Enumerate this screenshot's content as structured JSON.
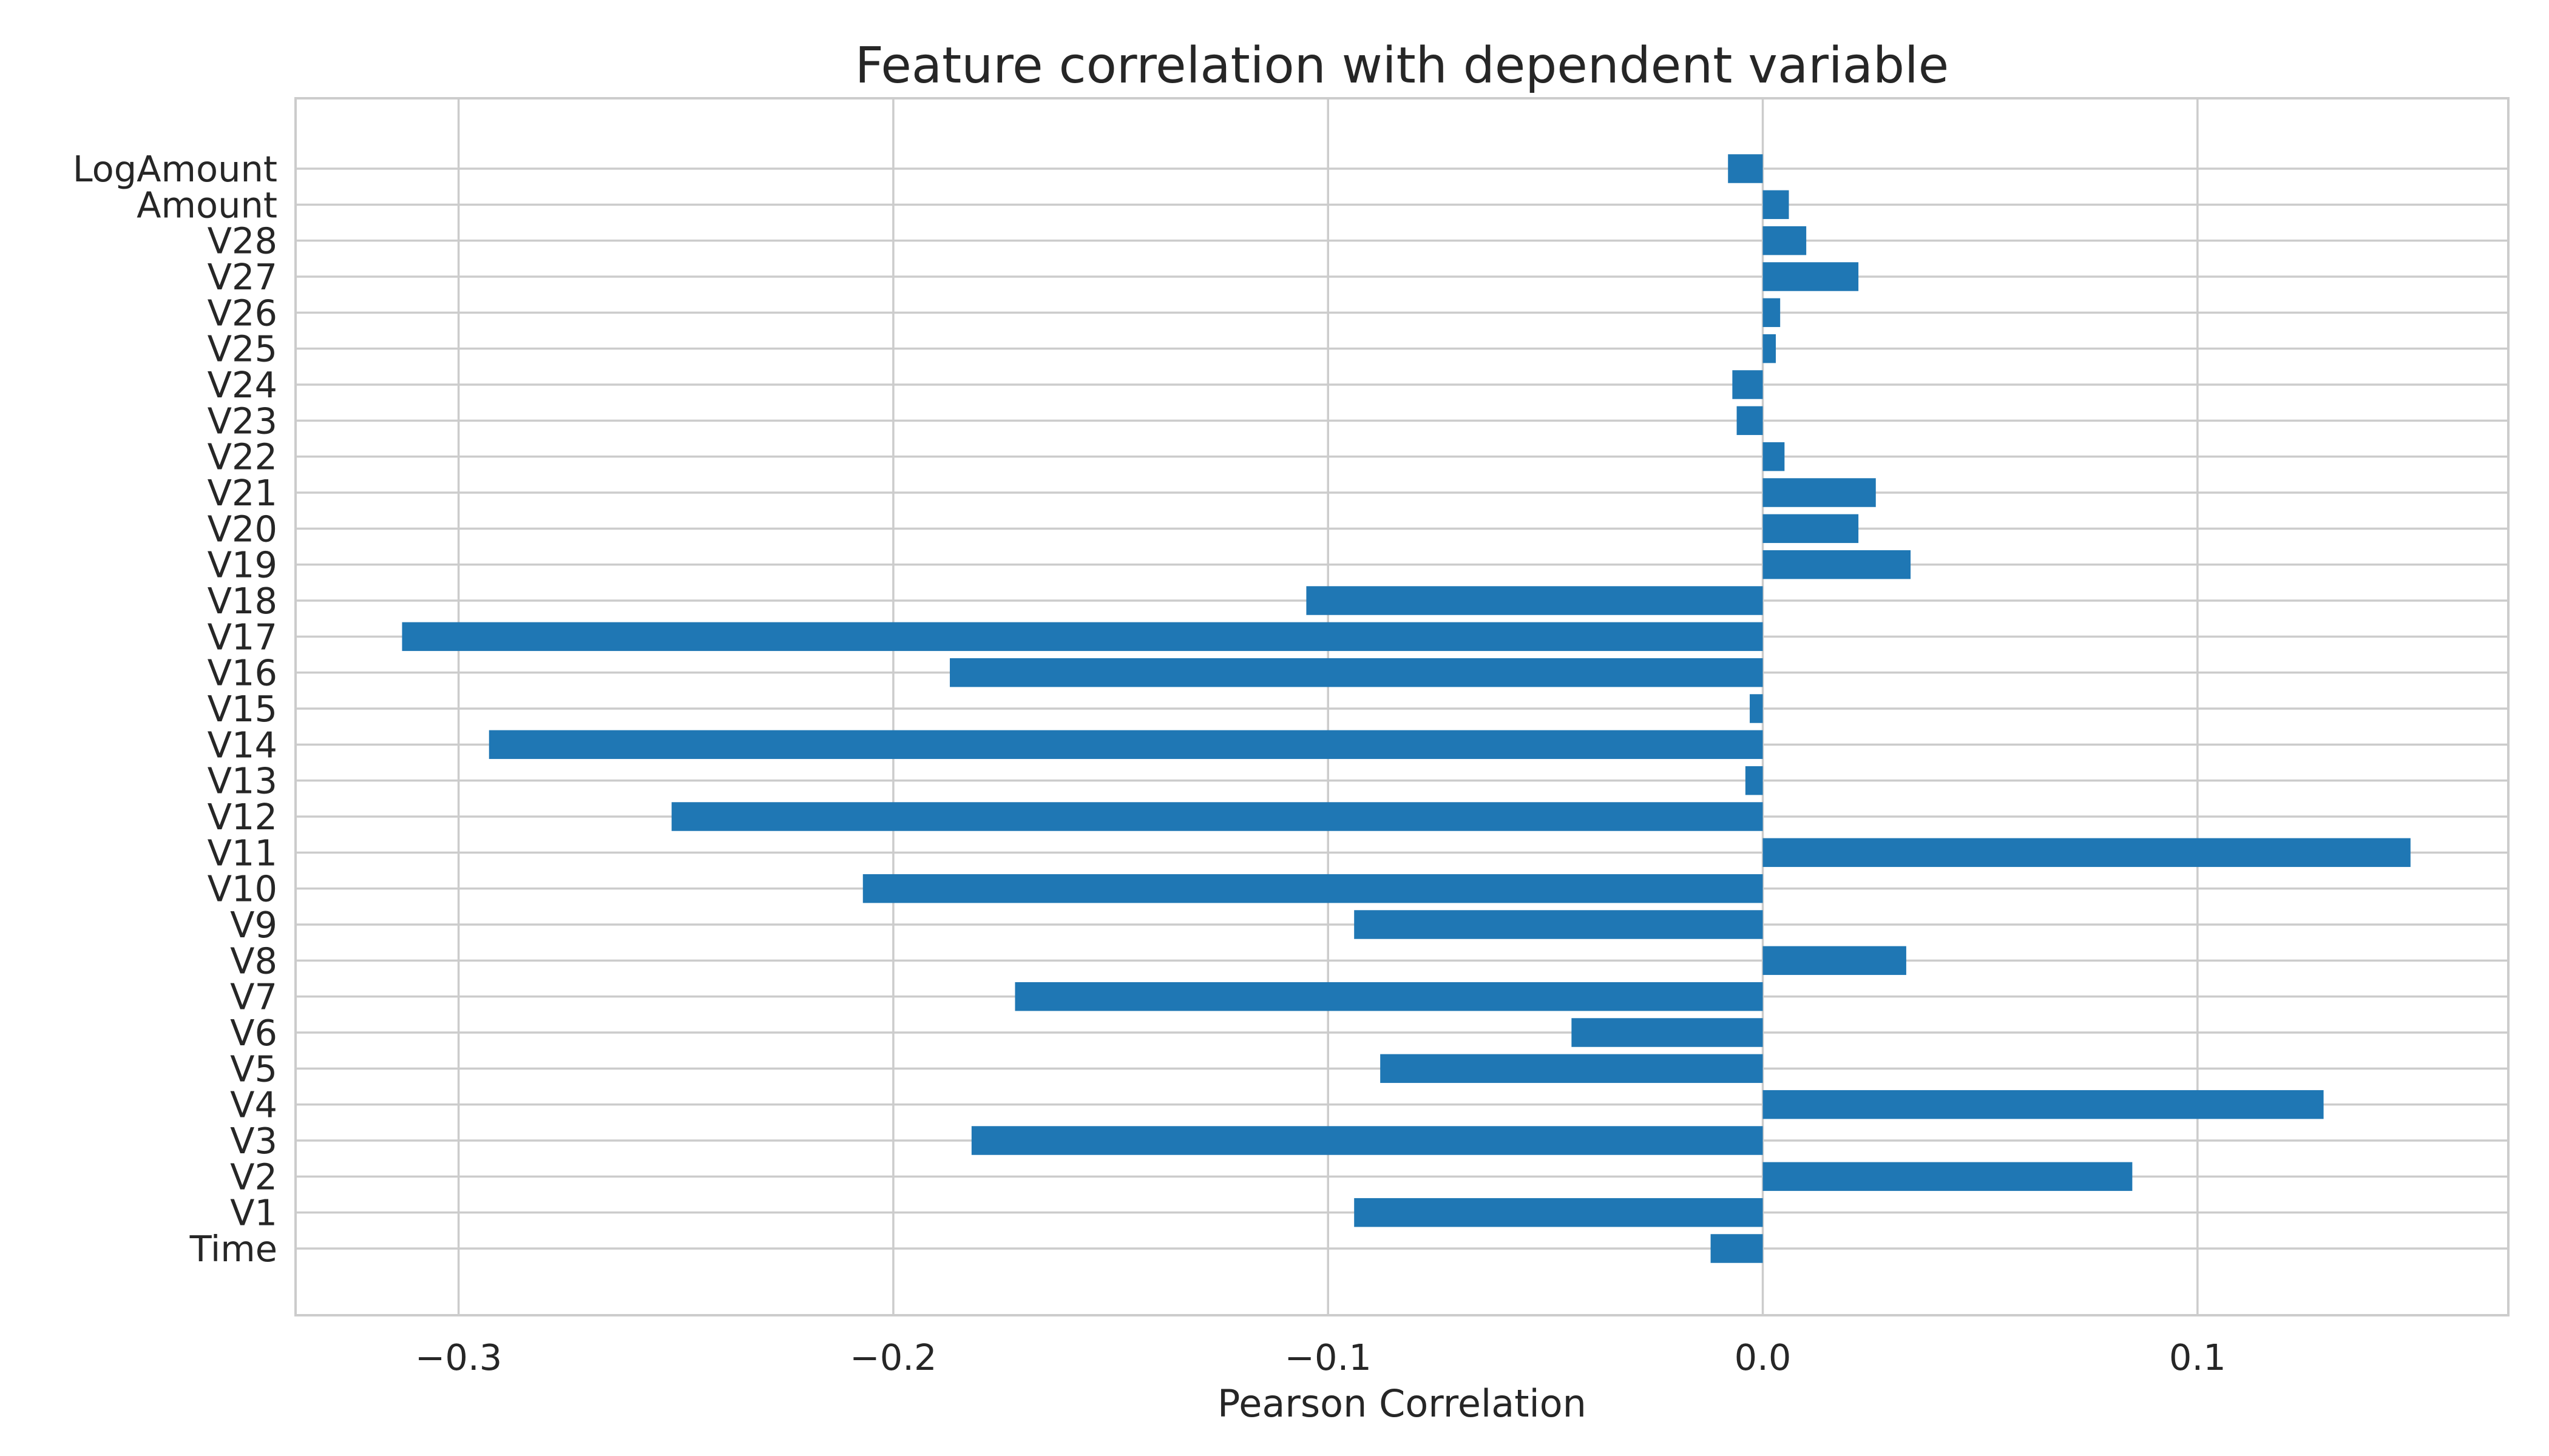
{
  "chart_data": {
    "type": "bar",
    "orientation": "horizontal",
    "title": "Feature correlation with dependent variable",
    "xlabel": "Pearson Correlation",
    "ylabel": "",
    "xlim": [
      -0.3375,
      0.1715
    ],
    "xticks": [
      -0.3,
      -0.2,
      -0.1,
      0.0,
      0.1
    ],
    "xtick_labels": [
      "−0.3",
      "−0.2",
      "−0.1",
      "0.0",
      "0.1"
    ],
    "grid": true,
    "bar_color": "#1f77b4",
    "categories": [
      "Time",
      "V1",
      "V2",
      "V3",
      "V4",
      "V5",
      "V6",
      "V7",
      "V8",
      "V9",
      "V10",
      "V11",
      "V12",
      "V13",
      "V14",
      "V15",
      "V16",
      "V17",
      "V18",
      "V19",
      "V20",
      "V21",
      "V22",
      "V23",
      "V24",
      "V25",
      "V26",
      "V27",
      "V28",
      "Amount",
      "LogAmount"
    ],
    "values": [
      -0.012,
      -0.094,
      0.085,
      -0.182,
      0.129,
      -0.088,
      -0.044,
      -0.172,
      0.033,
      -0.094,
      -0.207,
      0.149,
      -0.251,
      -0.004,
      -0.293,
      -0.003,
      -0.187,
      -0.313,
      -0.105,
      0.034,
      0.022,
      0.026,
      0.005,
      -0.006,
      -0.007,
      0.003,
      0.004,
      0.022,
      0.01,
      0.006,
      -0.008
    ]
  }
}
